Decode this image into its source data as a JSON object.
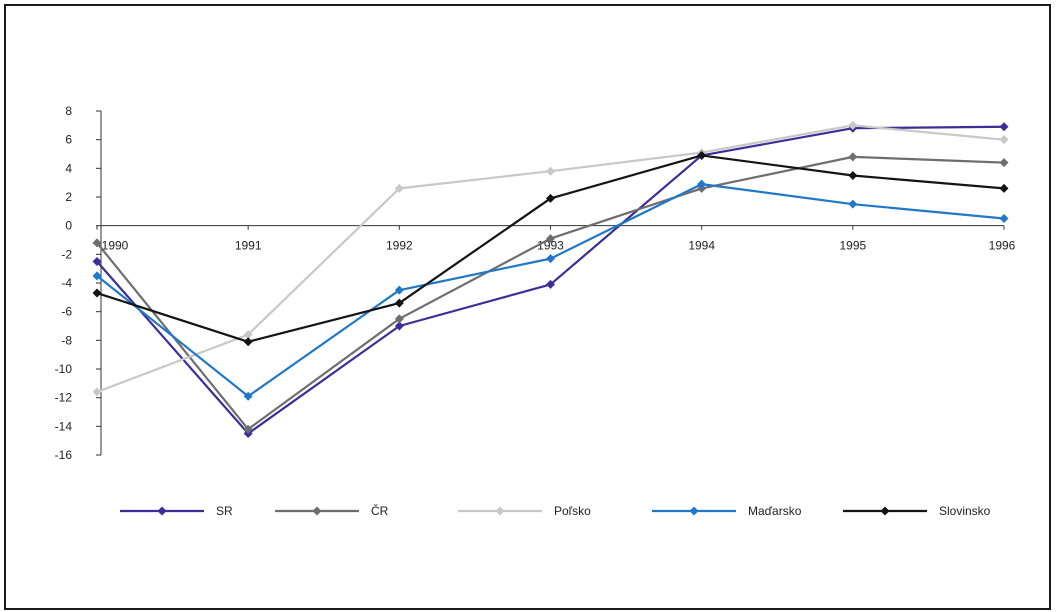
{
  "chart_data": {
    "type": "line",
    "title": "",
    "xlabel": "",
    "ylabel": "",
    "categories": [
      "1990",
      "1991",
      "1992",
      "1993",
      "1994",
      "1995",
      "1996"
    ],
    "ylim": [
      -16,
      8
    ],
    "yticks": [
      8,
      6,
      4,
      2,
      0,
      -2,
      -4,
      -6,
      -8,
      -10,
      -12,
      -14,
      -16
    ],
    "ytick_labels": [
      "8",
      "6",
      "4",
      "2",
      "0",
      "-2",
      "-4",
      "-6",
      "-8",
      "-10",
      "-12",
      "-14",
      "-16"
    ],
    "grid": false,
    "legend_position": "bottom",
    "series": [
      {
        "name": "SR",
        "color": "#3b2e9a",
        "values": [
          -2.5,
          -14.5,
          -7.0,
          -4.1,
          4.9,
          6.8,
          6.9
        ]
      },
      {
        "name": "ČR",
        "color": "#6e6e6e",
        "values": [
          -1.2,
          -14.2,
          -6.5,
          -0.9,
          2.6,
          4.8,
          4.4
        ]
      },
      {
        "name": "Poľsko",
        "color": "#c8c8c8",
        "values": [
          -11.6,
          -7.6,
          2.6,
          3.8,
          5.1,
          7.0,
          6.0
        ]
      },
      {
        "name": "Maďarsko",
        "color": "#1f78c8",
        "values": [
          -3.5,
          -11.9,
          -4.5,
          -2.3,
          2.9,
          1.5,
          0.5
        ]
      },
      {
        "name": "Slovinsko",
        "color": "#141414",
        "values": [
          -4.7,
          -8.1,
          -5.4,
          1.9,
          4.9,
          3.5,
          2.6
        ]
      }
    ]
  }
}
